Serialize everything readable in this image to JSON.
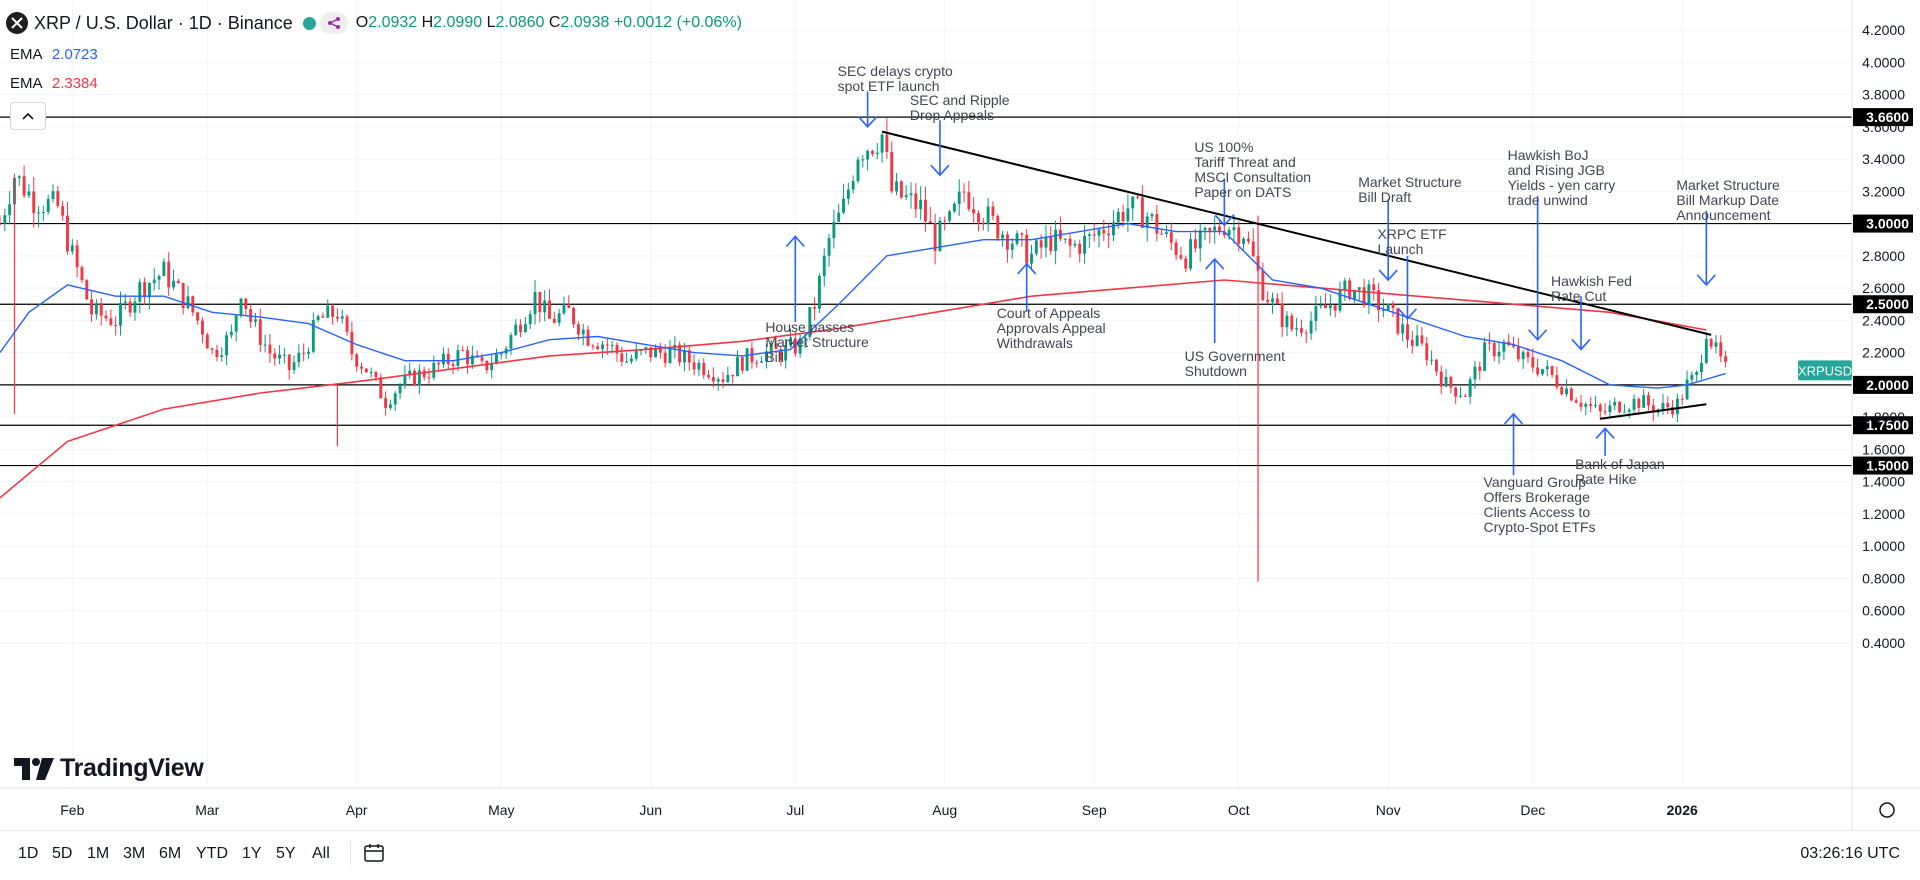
{
  "header": {
    "symbol": "XRP / U.S. Dollar · 1D · Binance",
    "o_label": "O",
    "o_value": "2.0932",
    "h_label": "H",
    "h_value": "2.0990",
    "l_label": "L",
    "l_value": "2.0860",
    "c_label": "C",
    "c_value": "2.0938",
    "change": "+0.0012 (+0.06%)"
  },
  "indicators": [
    {
      "label": "EMA",
      "value": "2.0723",
      "color": "#2962ff"
    },
    {
      "label": "EMA",
      "value": "2.3384",
      "color": "#f23645"
    }
  ],
  "branding": "TradingView",
  "timeframes": [
    "1D",
    "5D",
    "1M",
    "3M",
    "6M",
    "YTD",
    "1Y",
    "5Y",
    "All"
  ],
  "clock": "03:26:16 UTC",
  "colors": {
    "up": "#089981",
    "down": "#f23645",
    "ema_fast": "#2962ff",
    "ema_slow": "#f23645",
    "annotation": "#2962ff",
    "trend": "#000000"
  },
  "chart_data": {
    "type": "candlestick",
    "symbol_tag": "XRPUSD",
    "last_price": 2.0938,
    "y_ticks": [
      "4.2000",
      "4.0000",
      "3.8000",
      "3.6000",
      "3.4000",
      "3.2000",
      "3.0000",
      "2.8000",
      "2.6000",
      "2.4000",
      "2.2000",
      "2.0000",
      "1.8000",
      "1.6000",
      "1.4000",
      "1.2000",
      "1.0000",
      "0.8000",
      "0.6000",
      "0.4000"
    ],
    "ylim": [
      0.38,
      4.3
    ],
    "x_ticks": [
      {
        "label": "Feb",
        "day": 31
      },
      {
        "label": "Mar",
        "day": 59
      },
      {
        "label": "Apr",
        "day": 90
      },
      {
        "label": "May",
        "day": 120
      },
      {
        "label": "Jun",
        "day": 151
      },
      {
        "label": "Jul",
        "day": 181
      },
      {
        "label": "Aug",
        "day": 212
      },
      {
        "label": "Sep",
        "day": 243
      },
      {
        "label": "Oct",
        "day": 273
      },
      {
        "label": "Nov",
        "day": 304
      },
      {
        "label": "Dec",
        "day": 334
      },
      {
        "label": "2026",
        "day": 365
      }
    ],
    "xlim": [
      16,
      391
    ],
    "horizontal_levels": [
      {
        "label": "3.6600",
        "value": 3.66
      },
      {
        "label": "3.0000",
        "value": 3.0
      },
      {
        "label": "2.5000",
        "value": 2.5
      },
      {
        "label": "2.0000",
        "value": 2.0
      },
      {
        "label": "1.7500",
        "value": 1.75
      },
      {
        "label": "1.5000",
        "value": 1.5
      }
    ],
    "trendlines": [
      {
        "name": "descending-resistance",
        "points": [
          [
            199,
            3.57
          ],
          [
            371,
            2.31
          ]
        ]
      },
      {
        "name": "ascending-support",
        "points": [
          [
            348,
            1.79
          ],
          [
            370,
            1.88
          ]
        ]
      }
    ],
    "price_path": [
      [
        16,
        3.0
      ],
      [
        19,
        3.3
      ],
      [
        23,
        3.15
      ],
      [
        28,
        3.1
      ],
      [
        31,
        2.8
      ],
      [
        35,
        2.45
      ],
      [
        40,
        2.4
      ],
      [
        45,
        2.6
      ],
      [
        50,
        2.7
      ],
      [
        55,
        2.5
      ],
      [
        58,
        2.35
      ],
      [
        60,
        2.2
      ],
      [
        64,
        2.3
      ],
      [
        66,
        2.6
      ],
      [
        68,
        2.4
      ],
      [
        72,
        2.2
      ],
      [
        76,
        2.1
      ],
      [
        79,
        2.2
      ],
      [
        82,
        2.4
      ],
      [
        86,
        2.45
      ],
      [
        89,
        2.2
      ],
      [
        92,
        2.1
      ],
      [
        96,
        1.9
      ],
      [
        99,
        2.0
      ],
      [
        102,
        2.05
      ],
      [
        106,
        2.1
      ],
      [
        109,
        2.15
      ],
      [
        112,
        2.2
      ],
      [
        116,
        2.1
      ],
      [
        120,
        2.2
      ],
      [
        124,
        2.4
      ],
      [
        127,
        2.55
      ],
      [
        130,
        2.4
      ],
      [
        134,
        2.45
      ],
      [
        138,
        2.3
      ],
      [
        142,
        2.25
      ],
      [
        146,
        2.15
      ],
      [
        150,
        2.2
      ],
      [
        155,
        2.2
      ],
      [
        159,
        2.15
      ],
      [
        163,
        2.1
      ],
      [
        166,
        2.05
      ],
      [
        170,
        2.15
      ],
      [
        174,
        2.2
      ],
      [
        178,
        2.2
      ],
      [
        182,
        2.25
      ],
      [
        185,
        2.5
      ],
      [
        188,
        2.9
      ],
      [
        191,
        3.1
      ],
      [
        194,
        3.45
      ],
      [
        197,
        3.5
      ],
      [
        199,
        3.55
      ],
      [
        201,
        3.2
      ],
      [
        204,
        3.15
      ],
      [
        207,
        3.1
      ],
      [
        210,
        2.9
      ],
      [
        213,
        3.0
      ],
      [
        216,
        3.2
      ],
      [
        219,
        3.1
      ],
      [
        222,
        3.0
      ],
      [
        226,
        2.9
      ],
      [
        230,
        2.8
      ],
      [
        234,
        2.9
      ],
      [
        238,
        2.85
      ],
      [
        242,
        2.9
      ],
      [
        246,
        3.0
      ],
      [
        250,
        3.1
      ],
      [
        254,
        3.05
      ],
      [
        258,
        2.9
      ],
      [
        262,
        2.8
      ],
      [
        266,
        2.9
      ],
      [
        270,
        3.0
      ],
      [
        274,
        2.95
      ],
      [
        278,
        2.6
      ],
      [
        281,
        2.45
      ],
      [
        284,
        2.35
      ],
      [
        288,
        2.4
      ],
      [
        292,
        2.5
      ],
      [
        296,
        2.6
      ],
      [
        300,
        2.55
      ],
      [
        304,
        2.45
      ],
      [
        308,
        2.3
      ],
      [
        312,
        2.2
      ],
      [
        316,
        2.0
      ],
      [
        320,
        1.95
      ],
      [
        324,
        2.2
      ],
      [
        328,
        2.25
      ],
      [
        332,
        2.15
      ],
      [
        336,
        2.1
      ],
      [
        340,
        2.0
      ],
      [
        344,
        1.9
      ],
      [
        348,
        1.82
      ],
      [
        352,
        1.88
      ],
      [
        356,
        1.9
      ],
      [
        360,
        1.85
      ],
      [
        364,
        1.88
      ],
      [
        366,
        2.0
      ],
      [
        368,
        2.05
      ],
      [
        370,
        2.35
      ],
      [
        372,
        2.2
      ],
      [
        374,
        2.09
      ]
    ],
    "wicks": [
      {
        "day": 277,
        "low": 0.78,
        "high": 3.05
      },
      {
        "day": 86,
        "low": 1.62,
        "high": 2.0
      },
      {
        "day": 19,
        "low": 1.82,
        "high": 3.3
      }
    ],
    "ema_fast_values": [
      [
        16,
        2.2
      ],
      [
        22,
        2.45
      ],
      [
        30,
        2.62
      ],
      [
        40,
        2.55
      ],
      [
        50,
        2.55
      ],
      [
        60,
        2.45
      ],
      [
        70,
        2.42
      ],
      [
        80,
        2.38
      ],
      [
        90,
        2.25
      ],
      [
        100,
        2.15
      ],
      [
        110,
        2.15
      ],
      [
        120,
        2.2
      ],
      [
        130,
        2.28
      ],
      [
        140,
        2.3
      ],
      [
        150,
        2.25
      ],
      [
        160,
        2.2
      ],
      [
        170,
        2.18
      ],
      [
        180,
        2.22
      ],
      [
        190,
        2.5
      ],
      [
        200,
        2.8
      ],
      [
        210,
        2.85
      ],
      [
        220,
        2.9
      ],
      [
        230,
        2.9
      ],
      [
        240,
        2.95
      ],
      [
        250,
        3.0
      ],
      [
        260,
        2.95
      ],
      [
        270,
        2.95
      ],
      [
        280,
        2.65
      ],
      [
        290,
        2.6
      ],
      [
        300,
        2.5
      ],
      [
        310,
        2.4
      ],
      [
        320,
        2.3
      ],
      [
        330,
        2.25
      ],
      [
        340,
        2.15
      ],
      [
        350,
        2.0
      ],
      [
        360,
        1.98
      ],
      [
        366,
        2.0
      ],
      [
        374,
        2.07
      ]
    ],
    "ema_slow_values": [
      [
        16,
        1.3
      ],
      [
        30,
        1.65
      ],
      [
        50,
        1.85
      ],
      [
        70,
        1.95
      ],
      [
        90,
        2.02
      ],
      [
        110,
        2.1
      ],
      [
        130,
        2.18
      ],
      [
        150,
        2.22
      ],
      [
        170,
        2.27
      ],
      [
        190,
        2.35
      ],
      [
        210,
        2.45
      ],
      [
        230,
        2.55
      ],
      [
        250,
        2.6
      ],
      [
        270,
        2.65
      ],
      [
        290,
        2.6
      ],
      [
        310,
        2.55
      ],
      [
        330,
        2.5
      ],
      [
        350,
        2.45
      ],
      [
        370,
        2.34
      ]
    ],
    "annotations": [
      {
        "id": "sec-delays",
        "lines": [
          "SEC delays crypto",
          "spot ETF launch"
        ],
        "day": 196,
        "value": 3.99,
        "arrow": "down",
        "arrow_from": 3.82,
        "arrow_to": 3.6
      },
      {
        "id": "sec-ripple",
        "lines": [
          "SEC and Ripple",
          "Drop Appeals"
        ],
        "day": 211,
        "value": 3.81,
        "arrow": "down",
        "arrow_from": 3.64,
        "arrow_to": 3.3
      },
      {
        "id": "us-tariff",
        "lines": [
          "US 100%",
          "Tariff Threat and",
          "MSCI Consultation",
          "Paper on DATS"
        ],
        "day": 270,
        "value": 3.52,
        "arrow": "down",
        "arrow_from": 3.28,
        "arrow_to": 2.99
      },
      {
        "id": "ms-bill-draft",
        "lines": [
          "Market Structure",
          "Bill Draft"
        ],
        "day": 304,
        "value": 3.3,
        "arrow": "down",
        "arrow_from": 3.15,
        "arrow_to": 2.65
      },
      {
        "id": "hawkish-boj",
        "lines": [
          "Hawkish BoJ",
          "and Rising JGB",
          "Yields - yen carry",
          "trade unwind"
        ],
        "day": 335,
        "value": 3.47,
        "arrow": "down",
        "arrow_from": 3.17,
        "arrow_to": 2.28
      },
      {
        "id": "ms-markup",
        "lines": [
          "Market Structure",
          "Bill Markup Date",
          "Announcement"
        ],
        "day": 370,
        "value": 3.28,
        "arrow": "down",
        "arrow_from": 3.08,
        "arrow_to": 2.62
      },
      {
        "id": "xrpc-etf",
        "lines": [
          "XRPC ETF",
          "Launch"
        ],
        "day": 308,
        "value": 2.98,
        "arrow": "down",
        "arrow_from": 2.8,
        "arrow_to": 2.41
      },
      {
        "id": "hawkish-fed",
        "lines": [
          "Hawkish Fed",
          "Rate Cut"
        ],
        "day": 344,
        "value": 2.69,
        "arrow": "down",
        "arrow_from": 2.55,
        "arrow_to": 2.22
      },
      {
        "id": "house-passes",
        "lines": [
          "House passes",
          "Market Structure",
          "Bill"
        ],
        "day": 181,
        "value": 2.4,
        "arrow": "up",
        "arrow_from": 2.39,
        "arrow_to": 2.92
      },
      {
        "id": "court-appeals",
        "lines": [
          "Court of Appeals",
          "Approvals Appeal",
          "Withdrawals"
        ],
        "day": 229,
        "value": 2.49,
        "arrow": "up",
        "arrow_from": 2.46,
        "arrow_to": 2.75
      },
      {
        "id": "us-shutdown",
        "lines": [
          "US Government",
          "Shutdown"
        ],
        "day": 268,
        "value": 2.22,
        "arrow": "up",
        "arrow_from": 2.26,
        "arrow_to": 2.78
      },
      {
        "id": "vanguard",
        "lines": [
          "Vanguard Group",
          "Offers Brokerage",
          "Clients Access to",
          "Crypto-Spot ETFs"
        ],
        "day": 330,
        "value": 1.44,
        "arrow": "up",
        "arrow_from": 1.44,
        "arrow_to": 1.82
      },
      {
        "id": "boj-hike",
        "lines": [
          "Bank of Japan",
          "Rate Hike"
        ],
        "day": 349,
        "value": 1.55,
        "arrow": "up",
        "arrow_from": 1.56,
        "arrow_to": 1.73
      }
    ]
  }
}
